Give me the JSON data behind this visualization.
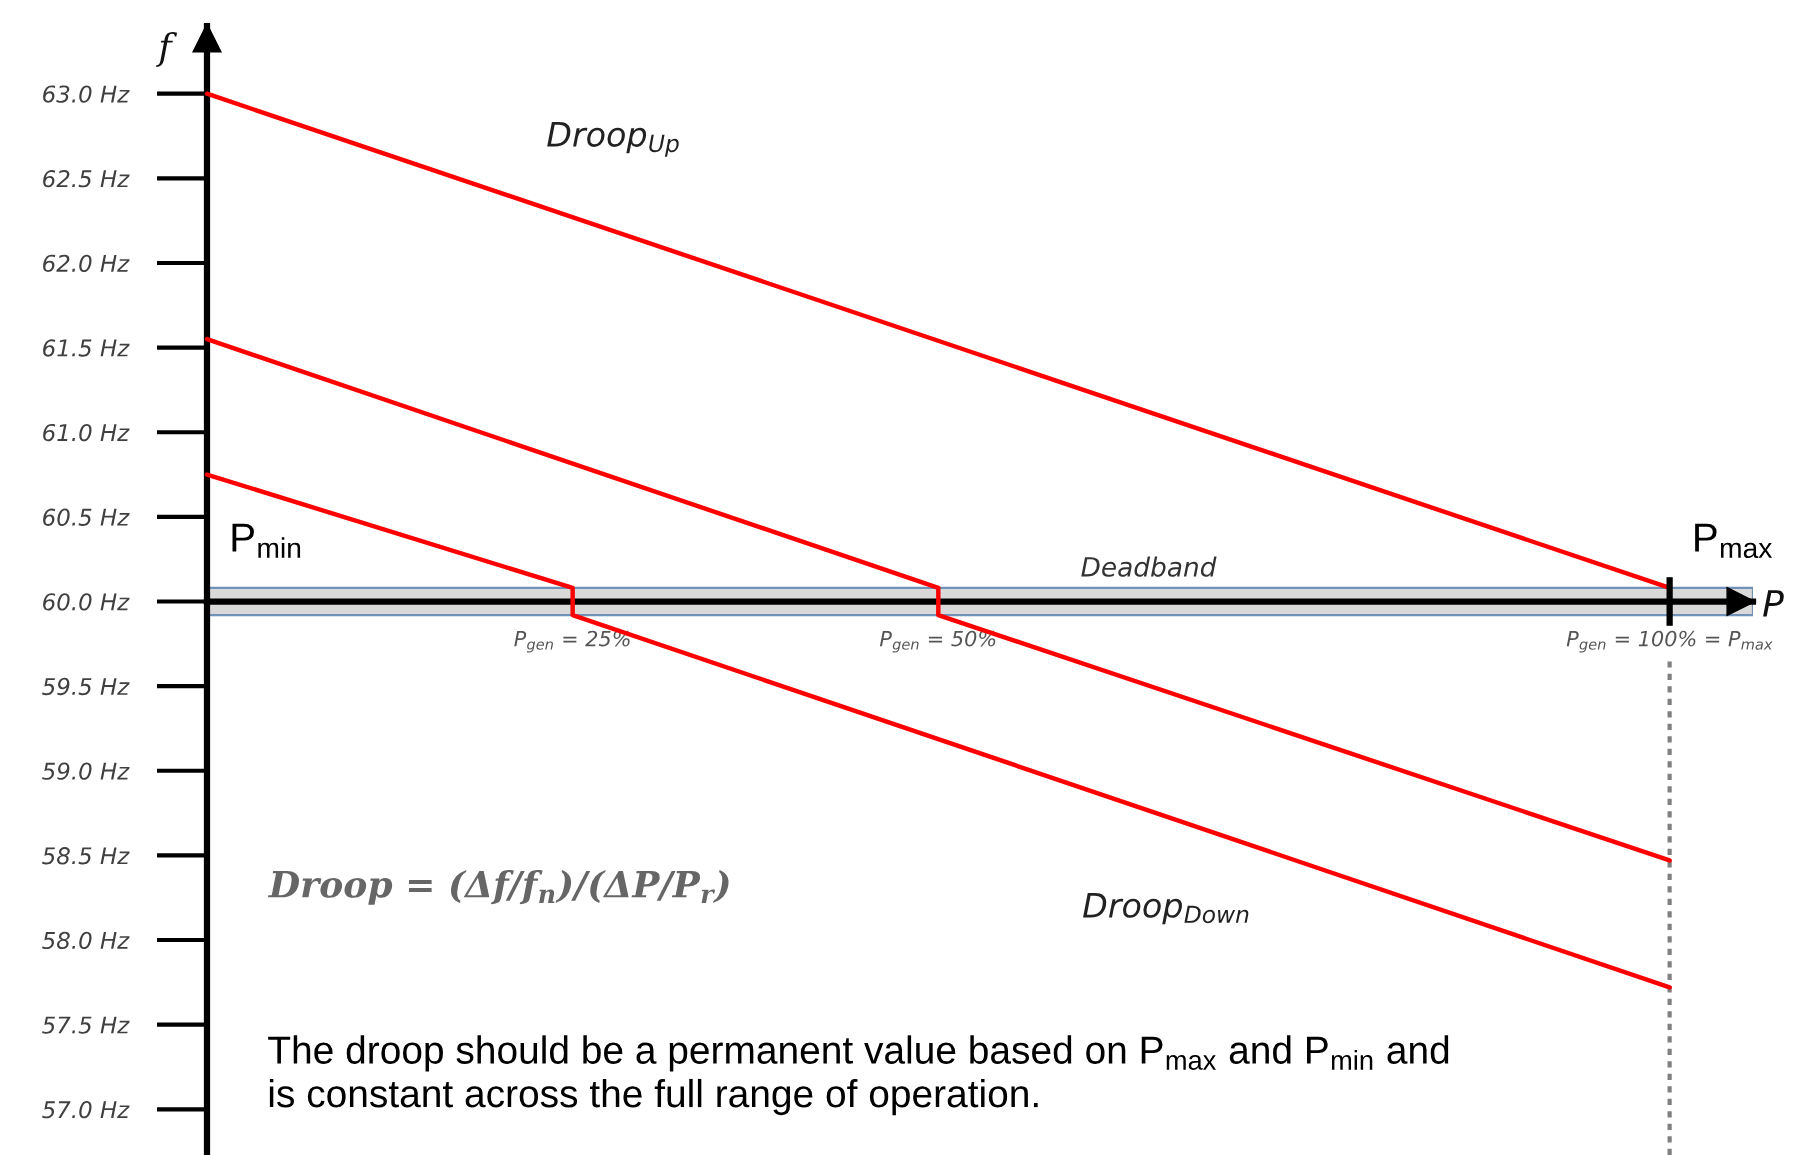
{
  "chart_data": {
    "type": "line",
    "xlabel": "P",
    "ylabel": "f",
    "xlim": [
      0,
      105.7
    ],
    "xticks": [
      {
        "value": 25,
        "label": "P$_{gen}$ = 25%"
      },
      {
        "value": 50,
        "label": "P$_{gen}$ = 50%"
      },
      {
        "value": 100,
        "label": "P$_{gen}$ = 100% = P$_{max}$"
      }
    ],
    "ylim": [
      56.73,
      63.4
    ],
    "yticks": [
      {
        "value": 57,
        "label": "57.0 Hz"
      },
      {
        "value": 57.5,
        "label": "57.5 Hz"
      },
      {
        "value": 58,
        "label": "58.0 Hz"
      },
      {
        "value": 58.5,
        "label": "58.5 Hz"
      },
      {
        "value": 59,
        "label": "59.0 Hz"
      },
      {
        "value": 59.5,
        "label": "59.5 Hz"
      },
      {
        "value": 60,
        "label": "60.0 Hz"
      },
      {
        "value": 60.5,
        "label": "60.5 Hz"
      },
      {
        "value": 61,
        "label": "61.0 Hz"
      },
      {
        "value": 61.5,
        "label": "61.5 Hz"
      },
      {
        "value": 62,
        "label": "62.0 Hz"
      },
      {
        "value": 62.5,
        "label": "62.5 Hz"
      },
      {
        "value": 63,
        "label": "63.0 Hz"
      }
    ],
    "line_style": "solid",
    "series": [
      {
        "name": "Droop$_{Up}$",
        "color": "#ff0000",
        "x": [
          0,
          100
        ],
        "values": [
          63.0,
          60.08
        ]
      },
      {
        "color": "#ff0000",
        "x": [
          0,
          50,
          50,
          100
        ],
        "values": [
          61.55,
          60.08,
          59.92,
          58.47
        ]
      },
      {
        "name": "Droop$_{Down}$",
        "color": "#ff0000",
        "x": [
          0,
          25,
          25,
          100
        ],
        "values": [
          60.75,
          60.08,
          59.92,
          57.72
        ]
      }
    ],
    "bands": [
      {
        "axis": "y",
        "from": 59.92,
        "to": 60.08,
        "label": "Deadband",
        "color": "#d9d9d9"
      }
    ],
    "ref_lines": [
      {
        "axis": "x",
        "value": 100,
        "label": "P$_{max}$",
        "color": "#808080",
        "line_style": "dotted"
      }
    ],
    "annotations": [
      {
        "text": "P$_{min}$",
        "x": 0,
        "y": 60
      },
      "Droop = (Δf/f$_{n}$)/(ΔP/P$_{r}$)",
      "The droop should be a permanent value based on P$_{max}$ and P$_{min}$ and\nis constant across the full range of operation."
    ]
  }
}
